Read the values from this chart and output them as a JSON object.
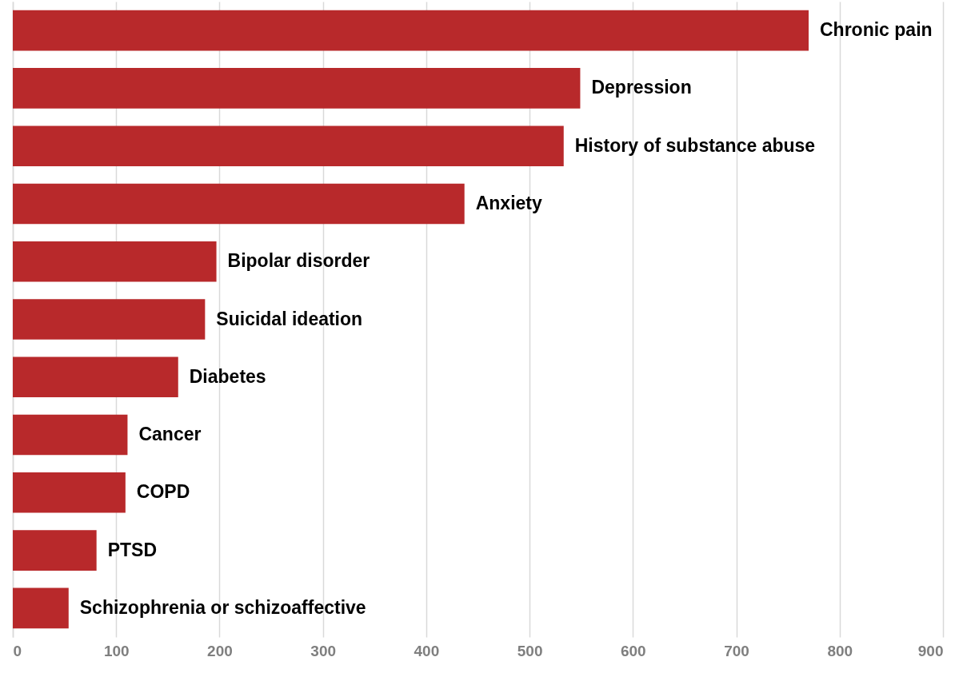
{
  "chart_data": {
    "type": "bar",
    "orientation": "horizontal",
    "categories": [
      "Chronic pain",
      "Depression",
      "History of substance abuse",
      "Anxiety",
      "Bipolar disorder",
      "Suicidal ideation",
      "Diabetes",
      "Cancer",
      "COPD",
      "PTSD",
      "Schizophrenia or schizoaffective"
    ],
    "values": [
      770,
      549,
      533,
      437,
      197,
      186,
      160,
      111,
      109,
      81,
      54
    ],
    "color": "#b8292b",
    "xlim": [
      0,
      900
    ],
    "xticks": [
      0,
      100,
      200,
      300,
      400,
      500,
      600,
      700,
      800,
      900
    ],
    "grid": "x"
  }
}
